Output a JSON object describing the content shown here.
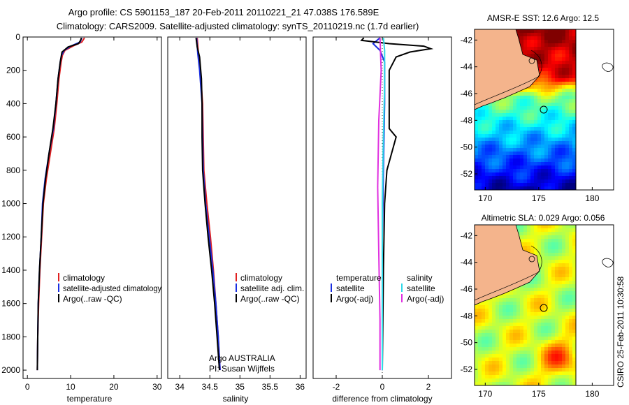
{
  "header": {
    "line1": "Argo profile: CS 5901153_187 20-Feb-2011 20110221_21 47.038S 176.589E",
    "line2": "Climatology: CARS2009. Satellite-adjusted climatology: synTS_20110219.nc (1.7d earlier)"
  },
  "colors": {
    "climatology": "#e02020",
    "satellite": "#1a2ee0",
    "argo": "#000000",
    "cyan": "#30d8e8",
    "magenta": "#e030e0",
    "land": "#f4b48c"
  },
  "chart_data": [
    {
      "type": "line",
      "xlabel": "temperature",
      "ylabel": "",
      "xlim": [
        -1,
        31
      ],
      "ylim": [
        2050,
        0
      ],
      "x_ticks": [
        "0",
        "10",
        "20",
        "30"
      ],
      "y_ticks": [
        "0",
        "200",
        "400",
        "600",
        "800",
        "1000",
        "1200",
        "1400",
        "1600",
        "1800",
        "2000"
      ],
      "legend": [
        "climatology",
        "satellite-adjusted climatology",
        "Argo(..raw -QC)"
      ],
      "series": [
        {
          "name": "climatology",
          "color": "#e02020",
          "points": [
            [
              13.2,
              5
            ],
            [
              12.6,
              30
            ],
            [
              10.5,
              55
            ],
            [
              8.7,
              80
            ],
            [
              8.1,
              110
            ],
            [
              7.8,
              150
            ],
            [
              7.3,
              250
            ],
            [
              6.8,
              400
            ],
            [
              6.2,
              550
            ],
            [
              5.3,
              700
            ],
            [
              4.4,
              850
            ],
            [
              3.7,
              1000
            ],
            [
              3.3,
              1200
            ],
            [
              2.9,
              1400
            ],
            [
              2.6,
              1600
            ],
            [
              2.4,
              1800
            ],
            [
              2.3,
              2000
            ]
          ]
        },
        {
          "name": "satellite-adjusted climatology",
          "color": "#1a2ee0",
          "points": [
            [
              12.6,
              5
            ],
            [
              12.2,
              30
            ],
            [
              10.0,
              55
            ],
            [
              8.5,
              80
            ],
            [
              7.9,
              110
            ],
            [
              7.6,
              150
            ],
            [
              7.1,
              250
            ],
            [
              6.6,
              400
            ],
            [
              6.0,
              550
            ],
            [
              5.0,
              700
            ],
            [
              4.1,
              850
            ],
            [
              3.5,
              1000
            ],
            [
              3.2,
              1200
            ],
            [
              2.8,
              1400
            ],
            [
              2.5,
              1600
            ],
            [
              2.4,
              1800
            ],
            [
              2.3,
              2000
            ]
          ]
        },
        {
          "name": "Argo(..raw -QC)",
          "color": "#000000",
          "points": [
            [
              12.5,
              5
            ],
            [
              12.3,
              20
            ],
            [
              11.8,
              40
            ],
            [
              9.4,
              60
            ],
            [
              8.0,
              90
            ],
            [
              7.6,
              150
            ],
            [
              7.1,
              250
            ],
            [
              6.6,
              400
            ],
            [
              5.9,
              550
            ],
            [
              5.0,
              700
            ],
            [
              4.2,
              850
            ],
            [
              3.6,
              1000
            ],
            [
              3.2,
              1200
            ],
            [
              2.8,
              1400
            ],
            [
              2.5,
              1600
            ],
            [
              2.4,
              1800
            ],
            [
              2.3,
              2000
            ]
          ]
        }
      ]
    },
    {
      "type": "line",
      "xlabel": "salinity",
      "ylabel": "",
      "xlim": [
        33.8,
        36.1
      ],
      "ylim": [
        2050,
        0
      ],
      "x_ticks": [
        "34",
        "34.5",
        "35",
        "35.5",
        "36"
      ],
      "legend": [
        "climatology",
        "satellite adj. clim.",
        "Argo(..raw -QC)"
      ],
      "annotation": [
        "Argo AUSTRALIA",
        "PI: Susan Wijffels"
      ],
      "series": [
        {
          "name": "climatology",
          "color": "#e02020",
          "points": [
            [
              34.29,
              5
            ],
            [
              34.31,
              100
            ],
            [
              34.34,
              200
            ],
            [
              34.38,
              400
            ],
            [
              34.39,
              600
            ],
            [
              34.4,
              800
            ],
            [
              34.45,
              1000
            ],
            [
              34.51,
              1200
            ],
            [
              34.56,
              1400
            ],
            [
              34.6,
              1600
            ],
            [
              34.64,
              1800
            ],
            [
              34.67,
              2000
            ]
          ]
        },
        {
          "name": "satellite adj. clim.",
          "color": "#1a2ee0",
          "points": [
            [
              34.28,
              5
            ],
            [
              34.3,
              100
            ],
            [
              34.33,
              200
            ],
            [
              34.37,
              400
            ],
            [
              34.38,
              600
            ],
            [
              34.39,
              800
            ],
            [
              34.43,
              1000
            ],
            [
              34.49,
              1200
            ],
            [
              34.55,
              1400
            ],
            [
              34.6,
              1600
            ],
            [
              34.64,
              1800
            ],
            [
              34.67,
              2000
            ]
          ]
        },
        {
          "name": "Argo(..raw -QC)",
          "color": "#000000",
          "points": [
            [
              34.27,
              5
            ],
            [
              34.29,
              60
            ],
            [
              34.33,
              120
            ],
            [
              34.36,
              250
            ],
            [
              34.37,
              400
            ],
            [
              34.37,
              600
            ],
            [
              34.38,
              800
            ],
            [
              34.42,
              1000
            ],
            [
              34.47,
              1200
            ],
            [
              34.53,
              1400
            ],
            [
              34.58,
              1600
            ],
            [
              34.62,
              1800
            ],
            [
              34.66,
              2000
            ]
          ]
        }
      ]
    },
    {
      "type": "line",
      "xlabel": "difference from climatology",
      "ylabel": "",
      "xlim": [
        -3,
        3
      ],
      "ylim": [
        2050,
        0
      ],
      "x_ticks": [
        "-2",
        "0",
        "2"
      ],
      "legend_left_title": "temperature",
      "legend_right_title": "salinity",
      "legend_left": [
        "satellite",
        "Argo(-adj)"
      ],
      "legend_right": [
        "satellite",
        "Argo(-adj)"
      ],
      "series": [
        {
          "name": "temperature satellite",
          "color": "#1a2ee0",
          "points": [
            [
              -0.1,
              5
            ],
            [
              -0.4,
              40
            ],
            [
              -0.1,
              80
            ],
            [
              0.1,
              150
            ],
            [
              0.1,
              400
            ],
            [
              0.05,
              800
            ],
            [
              0.0,
              1200
            ],
            [
              0.0,
              1600
            ],
            [
              0.0,
              2000
            ]
          ]
        },
        {
          "name": "temperature Argo(-adj)",
          "color": "#000000",
          "points": [
            [
              -0.8,
              5
            ],
            [
              -0.9,
              20
            ],
            [
              0.3,
              40
            ],
            [
              1.8,
              55
            ],
            [
              2.1,
              70
            ],
            [
              1.2,
              90
            ],
            [
              0.6,
              120
            ],
            [
              0.3,
              200
            ],
            [
              0.3,
              400
            ],
            [
              0.3,
              550
            ],
            [
              0.6,
              600
            ],
            [
              0.4,
              700
            ],
            [
              0.2,
              800
            ],
            [
              0.1,
              1000
            ],
            [
              0.05,
              1400
            ],
            [
              0.0,
              2000
            ]
          ]
        },
        {
          "name": "salinity satellite",
          "color": "#30d8e8",
          "points": [
            [
              0.05,
              5
            ],
            [
              0.1,
              80
            ],
            [
              0.1,
              300
            ],
            [
              0.05,
              600
            ],
            [
              0.0,
              1000
            ],
            [
              0.0,
              1500
            ],
            [
              0.0,
              2000
            ]
          ]
        },
        {
          "name": "salinity Argo(-adj)",
          "color": "#e030e0",
          "points": [
            [
              -0.1,
              5
            ],
            [
              -0.05,
              200
            ],
            [
              -0.15,
              500
            ],
            [
              -0.2,
              900
            ],
            [
              -0.15,
              1300
            ],
            [
              -0.1,
              1700
            ],
            [
              -0.1,
              2000
            ]
          ]
        }
      ]
    },
    {
      "type": "heatmap",
      "title": "AMSR-E SST: 12.6 Argo: 12.5",
      "x_ticks": [
        "170",
        "175",
        "180"
      ],
      "y_ticks": [
        "-42",
        "-44",
        "-46",
        "-48",
        "-50",
        "-52"
      ],
      "xlim": [
        169,
        182
      ],
      "ylim": [
        -53.2,
        -41.2
      ],
      "float_position": [
        176.589,
        -47.038
      ]
    },
    {
      "type": "heatmap",
      "title": "Altimetric SLA: 0.029 Argo: 0.056",
      "x_ticks": [
        "170",
        "175",
        "180"
      ],
      "y_ticks": [
        "-42",
        "-44",
        "-46",
        "-48",
        "-50",
        "-52"
      ],
      "xlim": [
        169,
        182
      ],
      "ylim": [
        -53.2,
        -41.2
      ],
      "float_position": [
        176.589,
        -47.038
      ]
    }
  ],
  "footer": {
    "credit": "CSIRO 25-Feb-2011 10:30:58"
  }
}
